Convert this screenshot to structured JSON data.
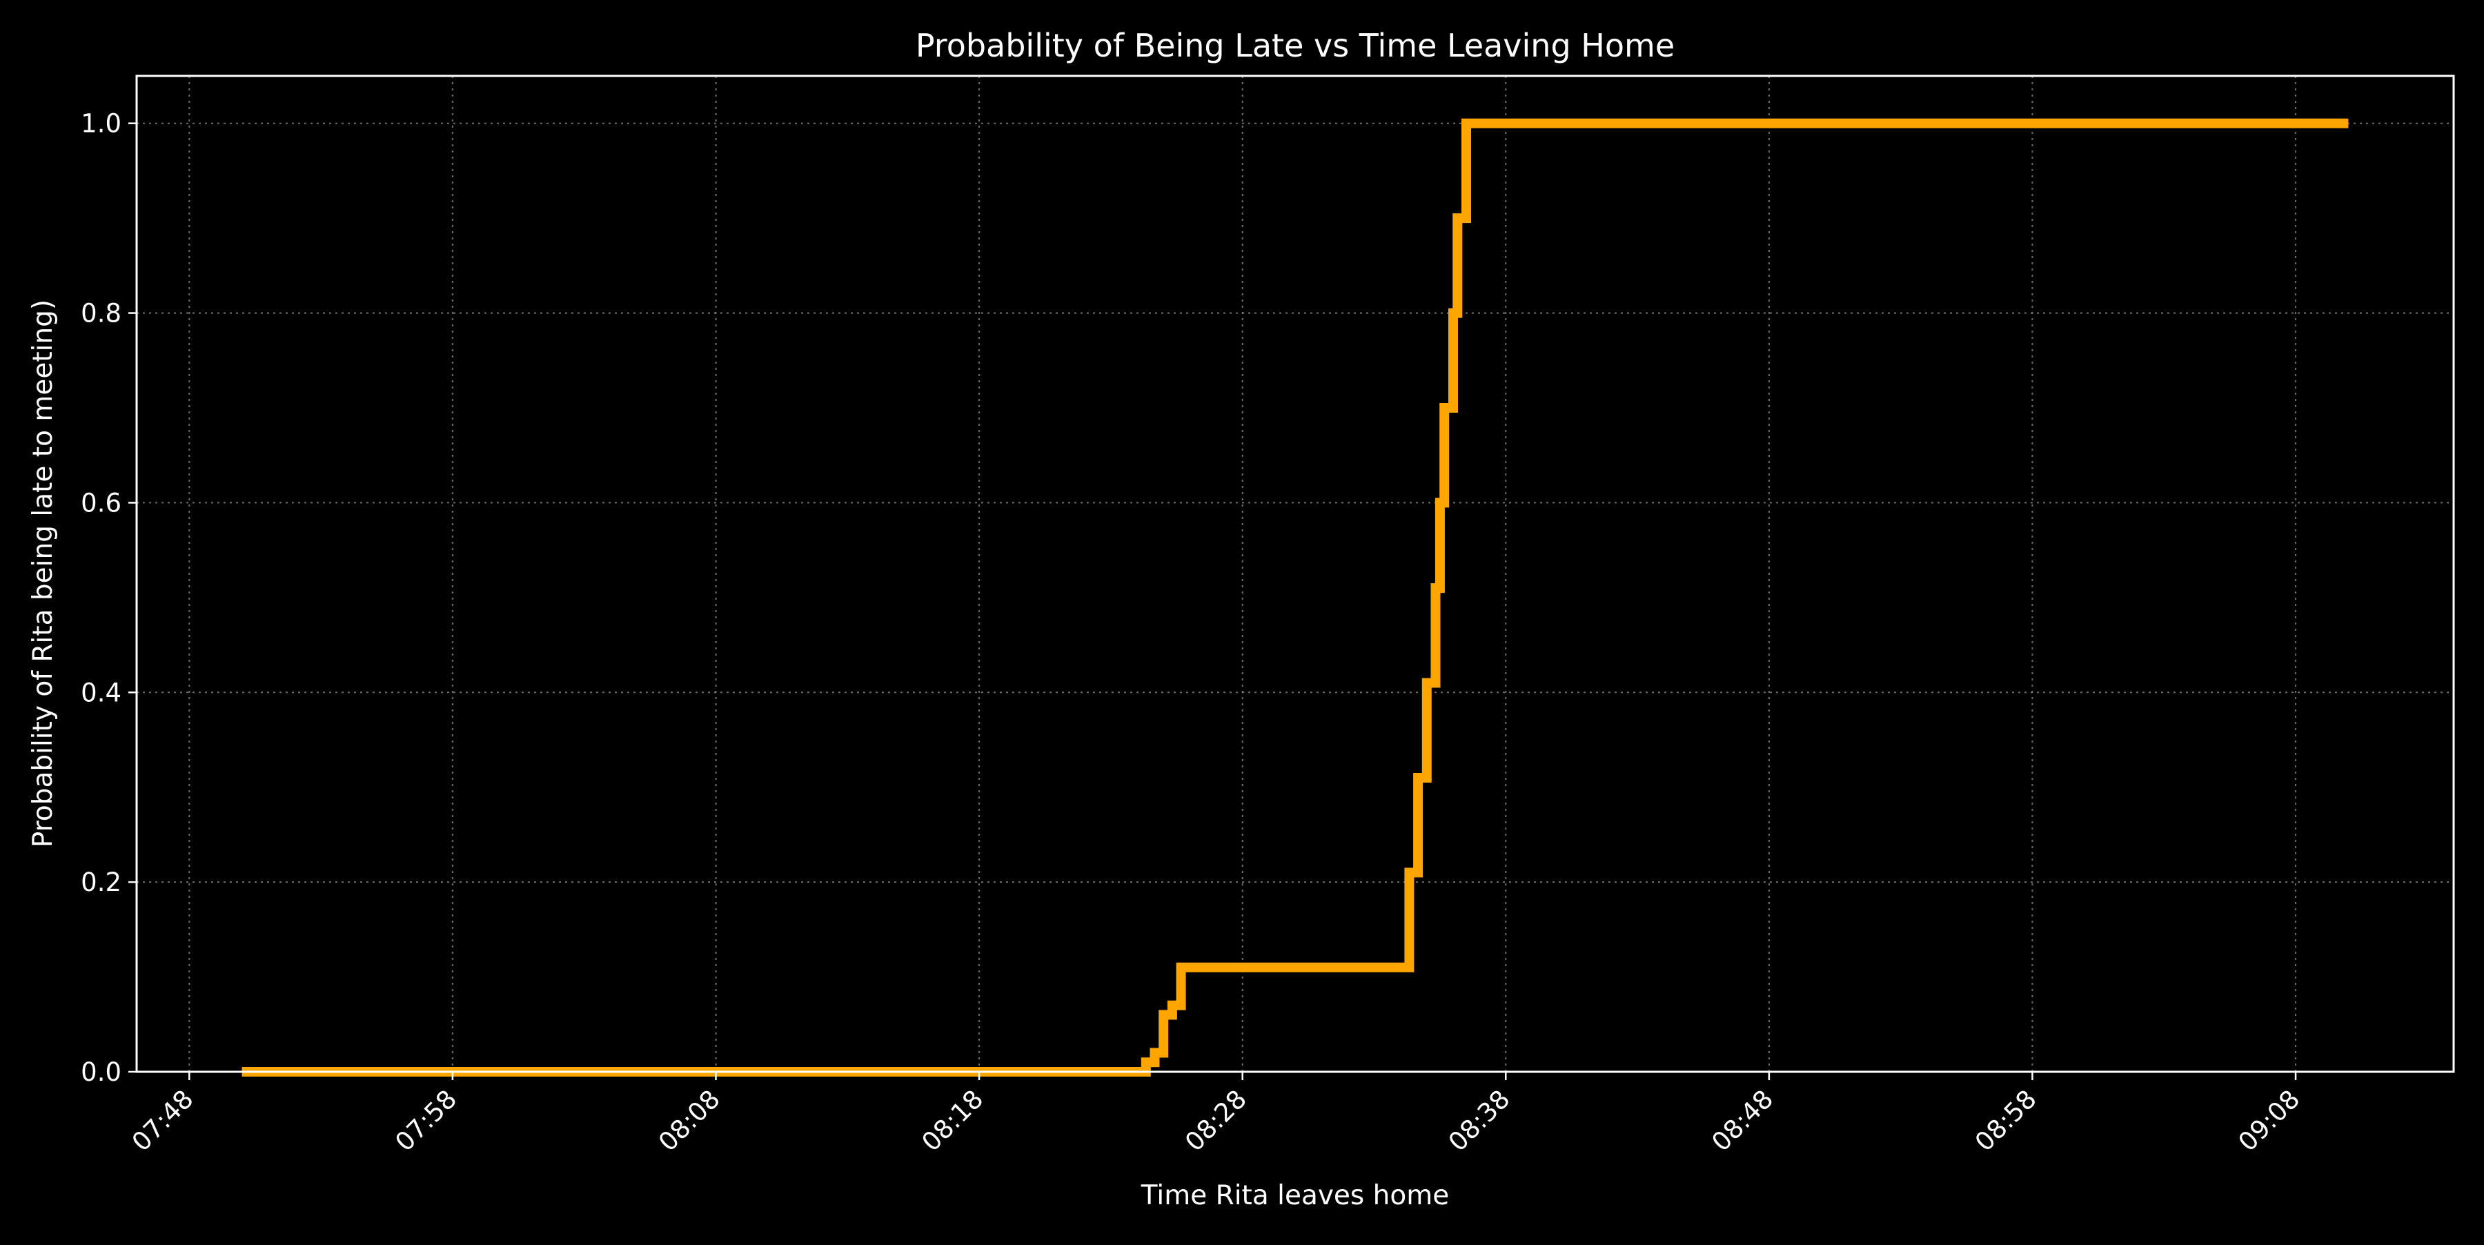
{
  "chart_data": {
    "type": "line",
    "style": "step",
    "title": "Probability of Being Late vs Time Leaving Home",
    "xlabel": "Time Rita leaves home",
    "ylabel": "Probability of Rita being late to meeting)",
    "x_ticks": [
      "07:48",
      "07:58",
      "08:08",
      "08:18",
      "08:28",
      "08:38",
      "08:48",
      "08:58",
      "09:08"
    ],
    "y_ticks": [
      "0.0",
      "0.2",
      "0.4",
      "0.6",
      "0.8",
      "1.0"
    ],
    "xlim": [
      "07:46",
      "09:14"
    ],
    "ylim": [
      0,
      1.05
    ],
    "grid": true,
    "line_color": "#FFA500",
    "series": [
      {
        "x": [
          "07:50",
          "08:24",
          "08:24:20",
          "08:24:40",
          "08:25",
          "08:25:20",
          "08:25:40",
          "08:34",
          "08:34:20",
          "08:34:40",
          "08:35",
          "08:35:20",
          "08:35:30",
          "08:35:40",
          "08:36",
          "08:36:10",
          "08:36:30",
          "09:10"
        ],
        "y": [
          0.0,
          0.0,
          0.01,
          0.02,
          0.06,
          0.07,
          0.11,
          0.11,
          0.21,
          0.31,
          0.41,
          0.51,
          0.6,
          0.7,
          0.8,
          0.9,
          1.0,
          1.0
        ]
      }
    ]
  }
}
